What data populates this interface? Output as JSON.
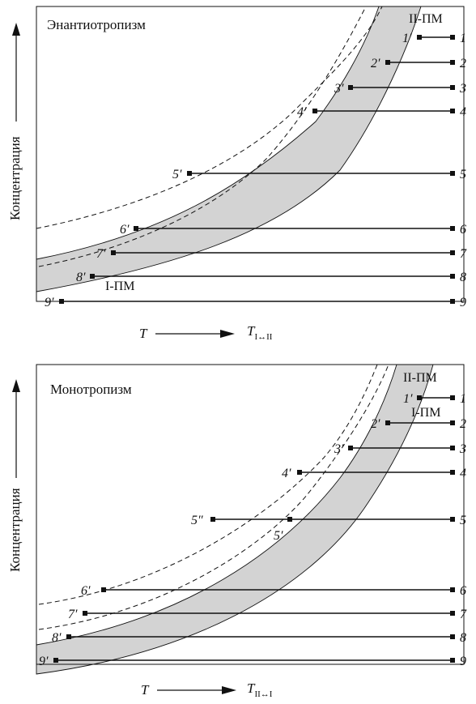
{
  "panels": [
    {
      "title": "Энантиотропизм",
      "y_axis_label": "Концентрация",
      "x_axis_label": "T",
      "transition_label": "T",
      "transition_subscript": "I↔II",
      "band_label_top": "II-ПМ",
      "band_label_bottom": "I-ПМ",
      "lines": [
        {
          "left": "1′",
          "right": "1"
        },
        {
          "left": "2′",
          "right": "2"
        },
        {
          "left": "3′",
          "right": "3"
        },
        {
          "left": "4′",
          "right": "4"
        },
        {
          "left": "5′",
          "right": "5"
        },
        {
          "left": "6′",
          "right": "6"
        },
        {
          "left": "7′",
          "right": "7"
        },
        {
          "left": "8′",
          "right": "8"
        },
        {
          "left": "9′",
          "right": "9"
        }
      ]
    },
    {
      "title": "Монотропизм",
      "y_axis_label": "Концентрация",
      "x_axis_label": "T",
      "transition_label": "T",
      "transition_subscript": "II↔I",
      "band_label_top": "II-ПМ",
      "band_label_bottom": "I-ПМ",
      "extra_label": "5″",
      "lines": [
        {
          "left": "1′",
          "right": "1"
        },
        {
          "left": "2′",
          "right": "2"
        },
        {
          "left": "3′",
          "right": "3"
        },
        {
          "left": "4′",
          "right": "4"
        },
        {
          "left": "5′",
          "right": "5"
        },
        {
          "left": "6′",
          "right": "6"
        },
        {
          "left": "7′",
          "right": "7"
        },
        {
          "left": "8′",
          "right": "8"
        },
        {
          "left": "9′",
          "right": "9"
        }
      ]
    }
  ],
  "colors": {
    "band": "#d3d3d3",
    "stroke": "#111111"
  }
}
